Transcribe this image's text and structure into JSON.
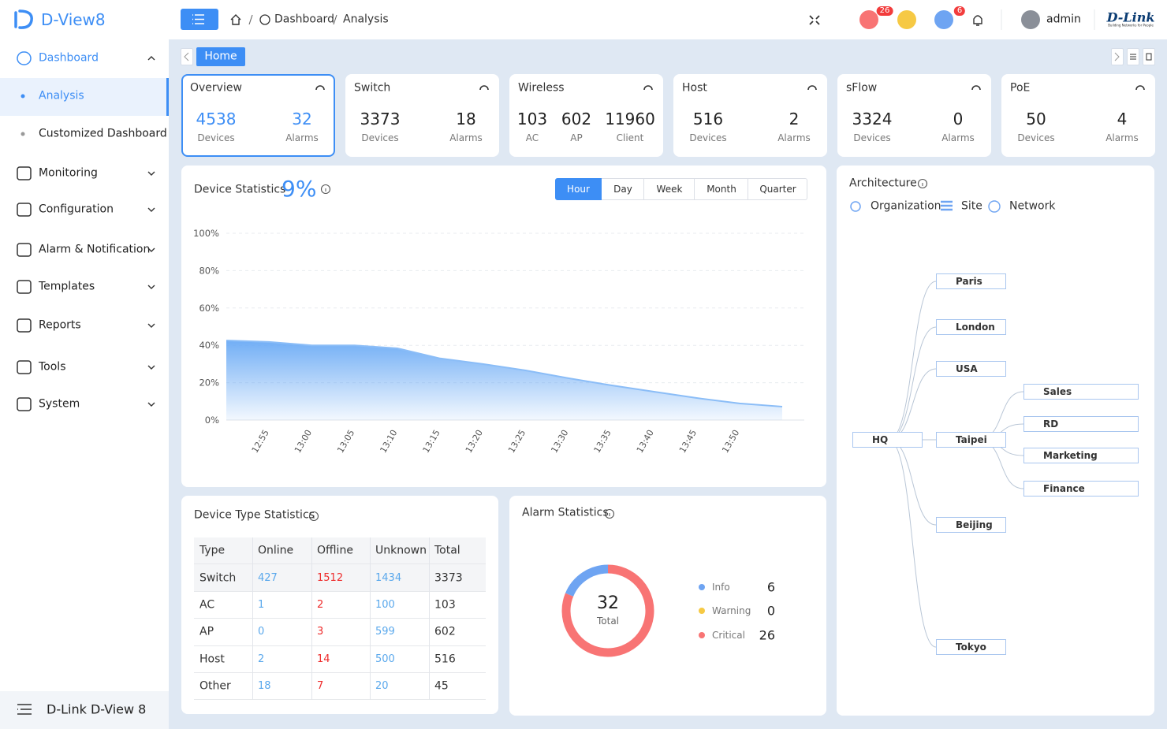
{
  "brand": "D-View8",
  "sidebar": {
    "menu": [
      {
        "label": "Dashboard",
        "children": [
          "Analysis",
          "Customized Dashboard"
        ]
      },
      {
        "label": "Monitoring"
      },
      {
        "label": "Configuration"
      },
      {
        "label": "Alarm & Notification"
      },
      {
        "label": "Templates"
      },
      {
        "label": "Reports"
      },
      {
        "label": "Tools"
      },
      {
        "label": "System"
      }
    ],
    "footer": "D-Link D-View 8"
  },
  "header": {
    "breadcrumb": [
      "Dashboard",
      "Analysis"
    ],
    "badges": [
      26,
      6
    ],
    "user": "admin",
    "logo": "D-Link",
    "logo_tagline": "Building Networks for People"
  },
  "tab": "Home",
  "cards": [
    {
      "title": "Overview",
      "stats": [
        {
          "value": 4538,
          "label": "Devices"
        },
        {
          "value": 32,
          "label": "Alarms"
        }
      ]
    },
    {
      "title": "Switch",
      "stats": [
        {
          "value": 3373,
          "label": "Devices"
        },
        {
          "value": 18,
          "label": "Alarms"
        }
      ]
    },
    {
      "title": "Wireless",
      "stats": [
        {
          "value": 103,
          "label": "AC"
        },
        {
          "value": 602,
          "label": "AP"
        },
        {
          "value": 11960,
          "label": "Client"
        }
      ]
    },
    {
      "title": "Host",
      "stats": [
        {
          "value": 516,
          "label": "Devices"
        },
        {
          "value": 2,
          "label": "Alarms"
        }
      ]
    },
    {
      "title": "sFlow",
      "stats": [
        {
          "value": 3324,
          "label": "Devices"
        },
        {
          "value": 0,
          "label": "Alarms"
        }
      ]
    },
    {
      "title": "PoE",
      "stats": [
        {
          "value": 50,
          "label": "Devices"
        },
        {
          "value": 4,
          "label": "Alarms"
        }
      ]
    }
  ],
  "device_statistics": {
    "title": "Device Statistics",
    "current": "9%",
    "ranges": [
      "Hour",
      "Day",
      "Week",
      "Month",
      "Quarter"
    ],
    "active_range": "Hour",
    "chart": {
      "type": "area",
      "categories": [
        null,
        "12:55",
        "13:00",
        "13:05",
        "13:10",
        "13:15",
        "13:20",
        "13:25",
        "13:30",
        "13:35",
        "13:40",
        "13:45",
        "13:50",
        null
      ],
      "values": [
        42.6,
        41.8,
        40.0,
        40.0,
        38.4,
        33.0,
        30.0,
        26.6,
        22.4,
        18.6,
        15.2,
        11.8,
        8.9,
        7.2
      ],
      "color": "#6aaaf5",
      "ylim": [
        0,
        100
      ],
      "yticks": [
        {
          "value": 0,
          "label": "0%"
        },
        {
          "value": 20,
          "label": "20%"
        },
        {
          "value": 40,
          "label": "40%"
        },
        {
          "value": 60,
          "label": "60%"
        },
        {
          "value": 80,
          "label": "80%"
        },
        {
          "value": 100,
          "label": "100%"
        }
      ],
      "grid": true
    }
  },
  "device_type_statistics": {
    "title": "Device Type Statistics",
    "table": {
      "columns": [
        "Type",
        "Online",
        "Offline",
        "Unknown",
        "Total"
      ],
      "rows": [
        [
          "Switch",
          427,
          1512,
          1434,
          3373
        ],
        [
          "AC",
          1,
          2,
          100,
          103
        ],
        [
          "AP",
          0,
          3,
          599,
          602
        ],
        [
          "Host",
          2,
          14,
          500,
          516
        ],
        [
          "Other",
          18,
          7,
          20,
          45
        ]
      ]
    }
  },
  "alarm_statistics": {
    "title": "Alarm Statistics",
    "chart": {
      "type": "donut",
      "total": 32,
      "total_label": "Total",
      "categories": [
        "Info",
        "Warning",
        "Critical"
      ],
      "values": [
        6,
        0,
        26
      ],
      "colors": [
        "#6ea4f2",
        "#f6c944",
        "#f87474"
      ]
    }
  },
  "architecture": {
    "title": "Architecture",
    "legend": [
      "Organization",
      "Site",
      "Network"
    ],
    "tree": {
      "root": "HQ",
      "sites": [
        {
          "label": "Paris"
        },
        {
          "label": "London"
        },
        {
          "label": "USA"
        },
        {
          "label": "Taipei",
          "networks": [
            "Sales",
            "RD",
            "Marketing",
            "Finance"
          ]
        },
        {
          "label": "Beijing"
        },
        {
          "label": "Tokyo"
        }
      ]
    }
  }
}
